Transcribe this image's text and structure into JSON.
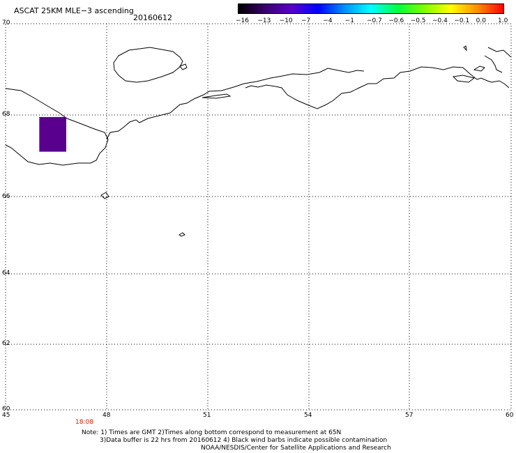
{
  "title": "ASCAT 25KM MLE−3 ascending",
  "date": "20160612",
  "colorbar": {
    "ticks": [
      "−16",
      "−13",
      "−10",
      "−7",
      "−4",
      "−1",
      "−0.7",
      "−0.6",
      "−0.5",
      "−0.4",
      "−0.1",
      "0.0",
      "1.0"
    ],
    "colors": [
      "#000000",
      "#3a0070",
      "#5a00c8",
      "#0000ff",
      "#0090ff",
      "#00ffff",
      "#00ff40",
      "#80ff00",
      "#ffff00",
      "#ff9000",
      "#ff0000"
    ]
  },
  "map": {
    "lat_labels": [
      "70",
      "68",
      "66",
      "64",
      "62",
      "60"
    ],
    "lon_labels": [
      "45",
      "48",
      "51",
      "54",
      "57",
      "60"
    ],
    "lat_range": [
      60,
      70
    ],
    "lon_range": [
      45,
      60
    ],
    "data_box": {
      "lon": [
        46.0,
        46.8
      ],
      "lat": [
        67.1,
        67.95
      ],
      "color": "#5a008f"
    }
  },
  "pass_time": "18:08",
  "notes": [
    "Note: 1) Times are GMT 2)Times along bottom correspond to measurement at 65N",
    "3)Data buffer is 22 hrs from 20160612 4) Black wind barbs indicate possible contamination",
    "NOAA/NESDIS/Center for Satellite Applications and Research"
  ]
}
